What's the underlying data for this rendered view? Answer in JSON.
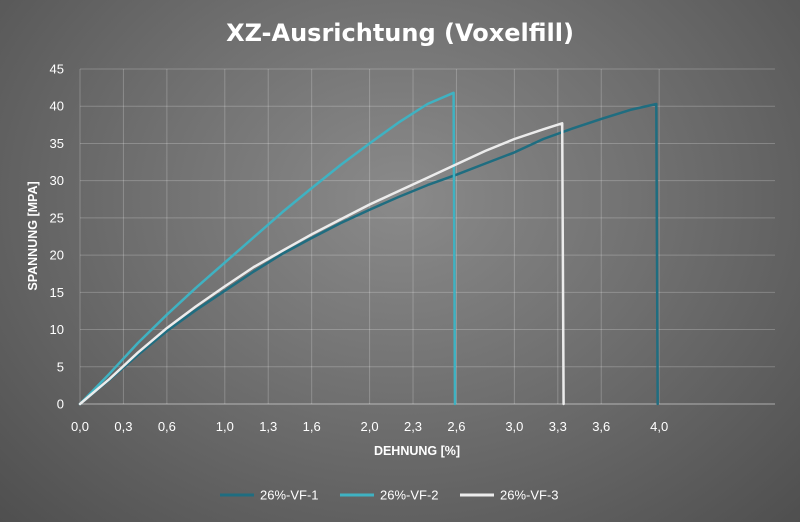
{
  "chart_data": {
    "type": "line",
    "title": "XZ-Ausrichtung (Voxelfill)",
    "xlabel": "DEHNUNG [%]",
    "ylabel": "SPANNUNG [MPA]",
    "xlim": [
      0,
      4.8
    ],
    "ylim": [
      0,
      45
    ],
    "x_tick_values": [
      0,
      0.3,
      0.6,
      1.0,
      1.3,
      1.6,
      2.0,
      2.3,
      2.6,
      3.0,
      3.3,
      3.6,
      4.0
    ],
    "x_tick_labels": [
      "0,0",
      "0,3",
      "0,6",
      "1,0",
      "1,3",
      "1,6",
      "2,0",
      "2,3",
      "2,6",
      "3,0",
      "3,3",
      "3,6",
      "4,0"
    ],
    "y_ticks": [
      0,
      5,
      10,
      15,
      20,
      25,
      30,
      35,
      40,
      45
    ],
    "grid": true,
    "legend_position": "bottom",
    "series": [
      {
        "name": "26%-VF-1",
        "color": "#1f6d80",
        "points": [
          [
            0,
            0
          ],
          [
            0.2,
            3.2
          ],
          [
            0.4,
            6.6
          ],
          [
            0.6,
            9.8
          ],
          [
            0.8,
            12.6
          ],
          [
            1.0,
            15.2
          ],
          [
            1.2,
            17.8
          ],
          [
            1.4,
            20.2
          ],
          [
            1.6,
            22.3
          ],
          [
            1.8,
            24.3
          ],
          [
            2.0,
            26.1
          ],
          [
            2.2,
            27.8
          ],
          [
            2.4,
            29.4
          ],
          [
            2.6,
            30.8
          ],
          [
            2.8,
            32.3
          ],
          [
            3.0,
            33.8
          ],
          [
            3.2,
            35.6
          ],
          [
            3.4,
            37.0
          ],
          [
            3.6,
            38.3
          ],
          [
            3.8,
            39.5
          ],
          [
            3.98,
            40.3
          ],
          [
            3.99,
            0
          ]
        ]
      },
      {
        "name": "26%-VF-2",
        "color": "#3fb2c2",
        "points": [
          [
            0,
            0
          ],
          [
            0.2,
            4.0
          ],
          [
            0.4,
            8.2
          ],
          [
            0.6,
            12.0
          ],
          [
            0.8,
            15.6
          ],
          [
            1.0,
            19.0
          ],
          [
            1.2,
            22.4
          ],
          [
            1.4,
            25.8
          ],
          [
            1.6,
            29.0
          ],
          [
            1.8,
            32.1
          ],
          [
            2.0,
            35.0
          ],
          [
            2.2,
            37.8
          ],
          [
            2.4,
            40.3
          ],
          [
            2.58,
            41.8
          ],
          [
            2.59,
            0
          ]
        ]
      },
      {
        "name": "26%-VF-3",
        "color": "#ececec",
        "points": [
          [
            0,
            0
          ],
          [
            0.2,
            3.3
          ],
          [
            0.4,
            6.9
          ],
          [
            0.6,
            10.2
          ],
          [
            0.8,
            13.1
          ],
          [
            1.0,
            15.8
          ],
          [
            1.2,
            18.4
          ],
          [
            1.4,
            20.6
          ],
          [
            1.6,
            22.8
          ],
          [
            1.8,
            24.8
          ],
          [
            2.0,
            26.8
          ],
          [
            2.2,
            28.6
          ],
          [
            2.4,
            30.4
          ],
          [
            2.6,
            32.2
          ],
          [
            2.8,
            34.0
          ],
          [
            3.0,
            35.6
          ],
          [
            3.2,
            36.9
          ],
          [
            3.33,
            37.7
          ],
          [
            3.34,
            0
          ]
        ]
      }
    ]
  }
}
